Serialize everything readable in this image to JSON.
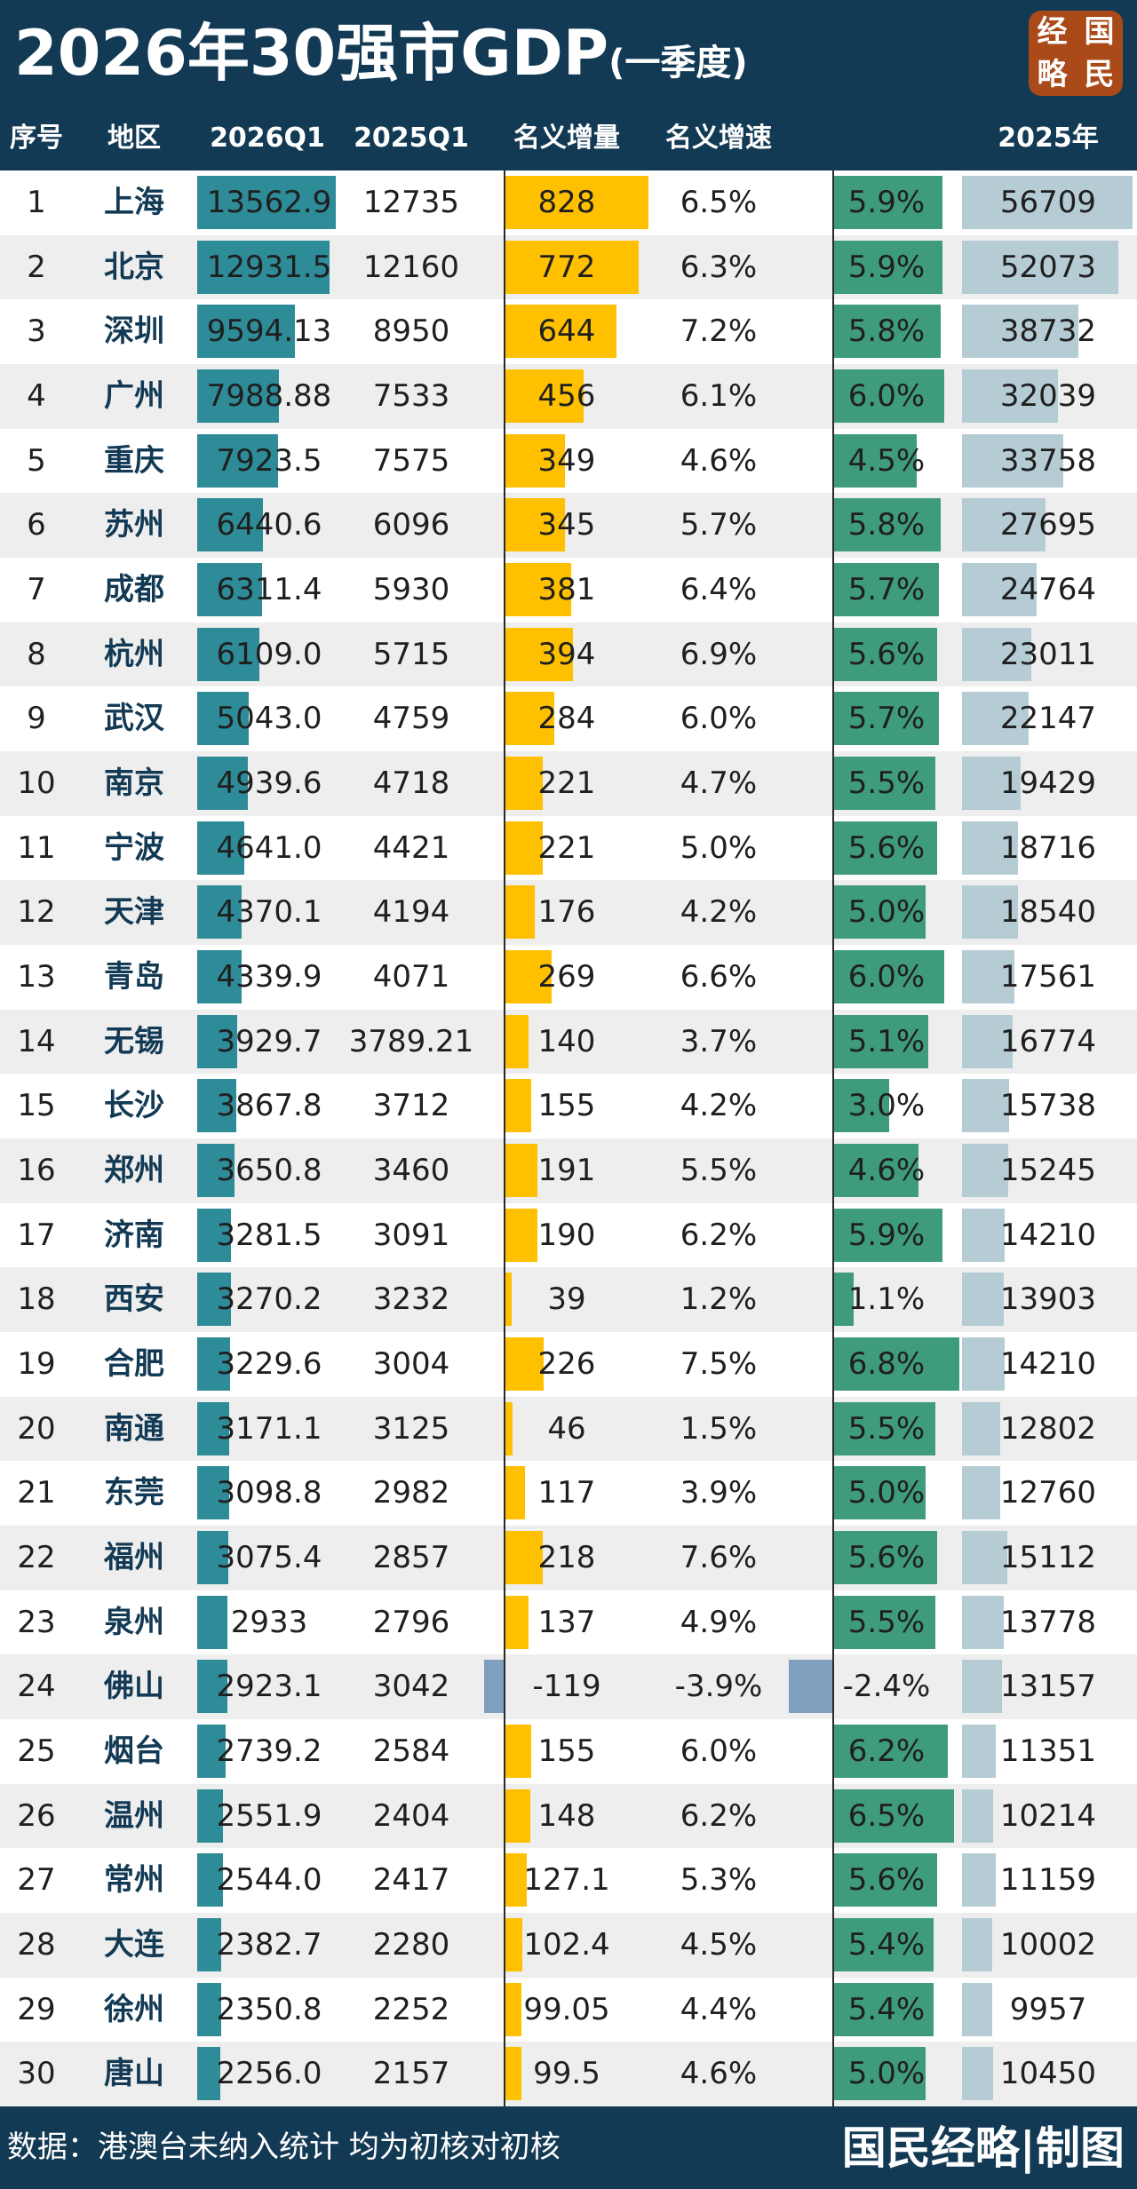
{
  "header": {
    "title": "2026年30强市GDP",
    "subtitle": "(一季度)",
    "logo_chars": [
      "经",
      "国",
      "略",
      "民"
    ]
  },
  "columns": [
    "序号",
    "地区",
    "2026Q1",
    "2025Q1",
    "名义增量",
    "名义增速",
    "",
    "2025年"
  ],
  "footer": {
    "note": "数据：港澳台未纳入统计 均为初核对初核",
    "brand": "国民经略|制图"
  },
  "colors": {
    "navy": "#133a55",
    "q1_bar": "#2e8b98",
    "increment_bar": "#ffc000",
    "real_growth_bar": "#3f9b7d",
    "negative_bar": "#7f9fbe",
    "year_bar": "#b6ccd5",
    "logo": "#a94a18"
  },
  "chart_data": {
    "type": "table",
    "title": "2026年30强市GDP(一季度)",
    "rows": [
      {
        "rank": "1",
        "city": "上海",
        "q1_2026": "13562.9",
        "q1_2025": "12735",
        "increment": "828",
        "nominal_growth": "6.5%",
        "real_growth": "5.9%",
        "y2025": "56709"
      },
      {
        "rank": "2",
        "city": "北京",
        "q1_2026": "12931.5",
        "q1_2025": "12160",
        "increment": "772",
        "nominal_growth": "6.3%",
        "real_growth": "5.9%",
        "y2025": "52073"
      },
      {
        "rank": "3",
        "city": "深圳",
        "q1_2026": "9594.13",
        "q1_2025": "8950",
        "increment": "644",
        "nominal_growth": "7.2%",
        "real_growth": "5.8%",
        "y2025": "38732"
      },
      {
        "rank": "4",
        "city": "广州",
        "q1_2026": "7988.88",
        "q1_2025": "7533",
        "increment": "456",
        "nominal_growth": "6.1%",
        "real_growth": "6.0%",
        "y2025": "32039"
      },
      {
        "rank": "5",
        "city": "重庆",
        "q1_2026": "7923.5",
        "q1_2025": "7575",
        "increment": "349",
        "nominal_growth": "4.6%",
        "real_growth": "4.5%",
        "y2025": "33758"
      },
      {
        "rank": "6",
        "city": "苏州",
        "q1_2026": "6440.6",
        "q1_2025": "6096",
        "increment": "345",
        "nominal_growth": "5.7%",
        "real_growth": "5.8%",
        "y2025": "27695"
      },
      {
        "rank": "7",
        "city": "成都",
        "q1_2026": "6311.4",
        "q1_2025": "5930",
        "increment": "381",
        "nominal_growth": "6.4%",
        "real_growth": "5.7%",
        "y2025": "24764"
      },
      {
        "rank": "8",
        "city": "杭州",
        "q1_2026": "6109.0",
        "q1_2025": "5715",
        "increment": "394",
        "nominal_growth": "6.9%",
        "real_growth": "5.6%",
        "y2025": "23011"
      },
      {
        "rank": "9",
        "city": "武汉",
        "q1_2026": "5043.0",
        "q1_2025": "4759",
        "increment": "284",
        "nominal_growth": "6.0%",
        "real_growth": "5.7%",
        "y2025": "22147"
      },
      {
        "rank": "10",
        "city": "南京",
        "q1_2026": "4939.6",
        "q1_2025": "4718",
        "increment": "221",
        "nominal_growth": "4.7%",
        "real_growth": "5.5%",
        "y2025": "19429"
      },
      {
        "rank": "11",
        "city": "宁波",
        "q1_2026": "4641.0",
        "q1_2025": "4421",
        "increment": "221",
        "nominal_growth": "5.0%",
        "real_growth": "5.6%",
        "y2025": "18716"
      },
      {
        "rank": "12",
        "city": "天津",
        "q1_2026": "4370.1",
        "q1_2025": "4194",
        "increment": "176",
        "nominal_growth": "4.2%",
        "real_growth": "5.0%",
        "y2025": "18540"
      },
      {
        "rank": "13",
        "city": "青岛",
        "q1_2026": "4339.9",
        "q1_2025": "4071",
        "increment": "269",
        "nominal_growth": "6.6%",
        "real_growth": "6.0%",
        "y2025": "17561"
      },
      {
        "rank": "14",
        "city": "无锡",
        "q1_2026": "3929.7",
        "q1_2025": "3789.21",
        "increment": "140",
        "nominal_growth": "3.7%",
        "real_growth": "5.1%",
        "y2025": "16774"
      },
      {
        "rank": "15",
        "city": "长沙",
        "q1_2026": "3867.8",
        "q1_2025": "3712",
        "increment": "155",
        "nominal_growth": "4.2%",
        "real_growth": "3.0%",
        "y2025": "15738"
      },
      {
        "rank": "16",
        "city": "郑州",
        "q1_2026": "3650.8",
        "q1_2025": "3460",
        "increment": "191",
        "nominal_growth": "5.5%",
        "real_growth": "4.6%",
        "y2025": "15245"
      },
      {
        "rank": "17",
        "city": "济南",
        "q1_2026": "3281.5",
        "q1_2025": "3091",
        "increment": "190",
        "nominal_growth": "6.2%",
        "real_growth": "5.9%",
        "y2025": "14210"
      },
      {
        "rank": "18",
        "city": "西安",
        "q1_2026": "3270.2",
        "q1_2025": "3232",
        "increment": "39",
        "nominal_growth": "1.2%",
        "real_growth": "1.1%",
        "y2025": "13903"
      },
      {
        "rank": "19",
        "city": "合肥",
        "q1_2026": "3229.6",
        "q1_2025": "3004",
        "increment": "226",
        "nominal_growth": "7.5%",
        "real_growth": "6.8%",
        "y2025": "14210"
      },
      {
        "rank": "20",
        "city": "南通",
        "q1_2026": "3171.1",
        "q1_2025": "3125",
        "increment": "46",
        "nominal_growth": "1.5%",
        "real_growth": "5.5%",
        "y2025": "12802"
      },
      {
        "rank": "21",
        "city": "东莞",
        "q1_2026": "3098.8",
        "q1_2025": "2982",
        "increment": "117",
        "nominal_growth": "3.9%",
        "real_growth": "5.0%",
        "y2025": "12760"
      },
      {
        "rank": "22",
        "city": "福州",
        "q1_2026": "3075.4",
        "q1_2025": "2857",
        "increment": "218",
        "nominal_growth": "7.6%",
        "real_growth": "5.6%",
        "y2025": "15112"
      },
      {
        "rank": "23",
        "city": "泉州",
        "q1_2026": "2933",
        "q1_2025": "2796",
        "increment": "137",
        "nominal_growth": "4.9%",
        "real_growth": "5.5%",
        "y2025": "13778"
      },
      {
        "rank": "24",
        "city": "佛山",
        "q1_2026": "2923.1",
        "q1_2025": "3042",
        "increment": "-119",
        "nominal_growth": "-3.9%",
        "real_growth": "-2.4%",
        "y2025": "13157"
      },
      {
        "rank": "25",
        "city": "烟台",
        "q1_2026": "2739.2",
        "q1_2025": "2584",
        "increment": "155",
        "nominal_growth": "6.0%",
        "real_growth": "6.2%",
        "y2025": "11351"
      },
      {
        "rank": "26",
        "city": "温州",
        "q1_2026": "2551.9",
        "q1_2025": "2404",
        "increment": "148",
        "nominal_growth": "6.2%",
        "real_growth": "6.5%",
        "y2025": "10214"
      },
      {
        "rank": "27",
        "city": "常州",
        "q1_2026": "2544.0",
        "q1_2025": "2417",
        "increment": "127.1",
        "nominal_growth": "5.3%",
        "real_growth": "5.6%",
        "y2025": "11159"
      },
      {
        "rank": "28",
        "city": "大连",
        "q1_2026": "2382.7",
        "q1_2025": "2280",
        "increment": "102.4",
        "nominal_growth": "4.5%",
        "real_growth": "5.4%",
        "y2025": "10002"
      },
      {
        "rank": "29",
        "city": "徐州",
        "q1_2026": "2350.8",
        "q1_2025": "2252",
        "increment": "99.05",
        "nominal_growth": "4.4%",
        "real_growth": "5.4%",
        "y2025": "9957"
      },
      {
        "rank": "30",
        "city": "唐山",
        "q1_2026": "2256.0",
        "q1_2025": "2157",
        "increment": "99.5",
        "nominal_growth": "4.6%",
        "real_growth": "5.0%",
        "y2025": "10450"
      }
    ]
  }
}
